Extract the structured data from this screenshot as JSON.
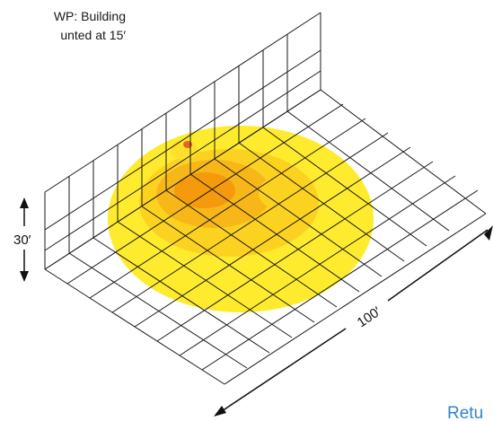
{
  "caption": {
    "line1": "WP: Building",
    "line2": "unted at 15′"
  },
  "dimensions": {
    "height_label": "30′",
    "length_label": "100′"
  },
  "return_link": {
    "label": "Retu"
  },
  "colors": {
    "light_outer": "#ffeb2e",
    "light_mid": "#fcd221",
    "light_inner": "#f8b718",
    "light_core": "#f59a0c",
    "hotspot": "#e8661a",
    "grid_line": "#1a1a1a",
    "link": "#2f86c9"
  }
}
